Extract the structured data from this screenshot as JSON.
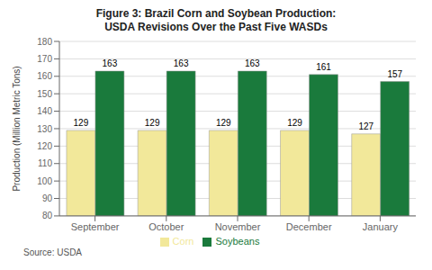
{
  "chart_data": {
    "type": "bar",
    "title": "Figure 3: Brazil Corn and Soybean Production:\nUSDA Revisions Over the Past Five WASDs",
    "ylabel": "Production (Million Metric Tons)",
    "categories": [
      "September",
      "October",
      "November",
      "December",
      "January"
    ],
    "series": [
      {
        "name": "Corn",
        "color": "#F2E89A",
        "values": [
          129,
          129,
          129,
          129,
          127
        ]
      },
      {
        "name": "Soybeans",
        "color": "#1A7A3C",
        "values": [
          163,
          163,
          163,
          161,
          157
        ]
      }
    ],
    "ylim": [
      80,
      180
    ],
    "yticks": [
      80,
      90,
      100,
      110,
      120,
      130,
      140,
      150,
      160,
      170,
      180
    ],
    "grid": true,
    "legend": "bottom",
    "data_labels": true,
    "annotations": [
      "Source: USDA"
    ]
  }
}
